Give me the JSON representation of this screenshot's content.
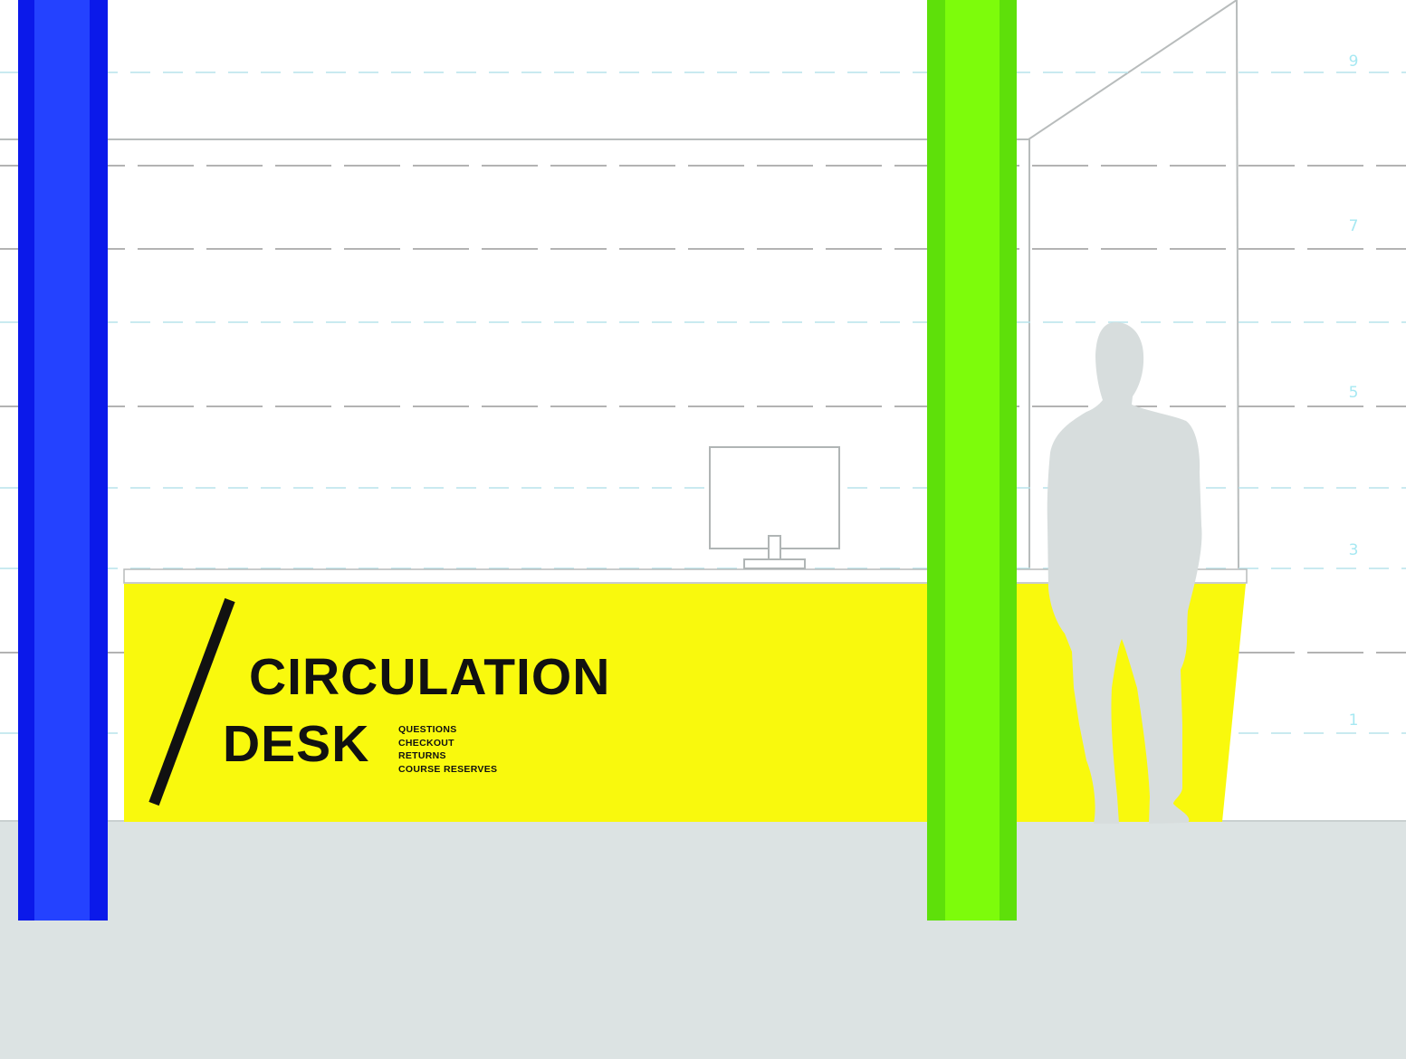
{
  "sign": {
    "title_line1": "CIRCULATION",
    "title_line2": "DESK",
    "services": [
      "QUESTIONS",
      "CHECKOUT",
      "RETURNS",
      "COURSE RESERVES"
    ]
  },
  "height_markers": [
    "9",
    "7",
    "5",
    "3",
    "1"
  ],
  "colors": {
    "desk": "#f9f90d",
    "blue_column": "#2442ff",
    "blue_column_edge": "#0b19ea",
    "green_column": "#7dfc0b",
    "green_column_edge": "#5ee00a",
    "floor": "#dce3e3",
    "figure": "#d7dddd",
    "guide_dash": "#9ed7e3",
    "guide_line": "#888888",
    "outline": "#b8bcbc"
  }
}
